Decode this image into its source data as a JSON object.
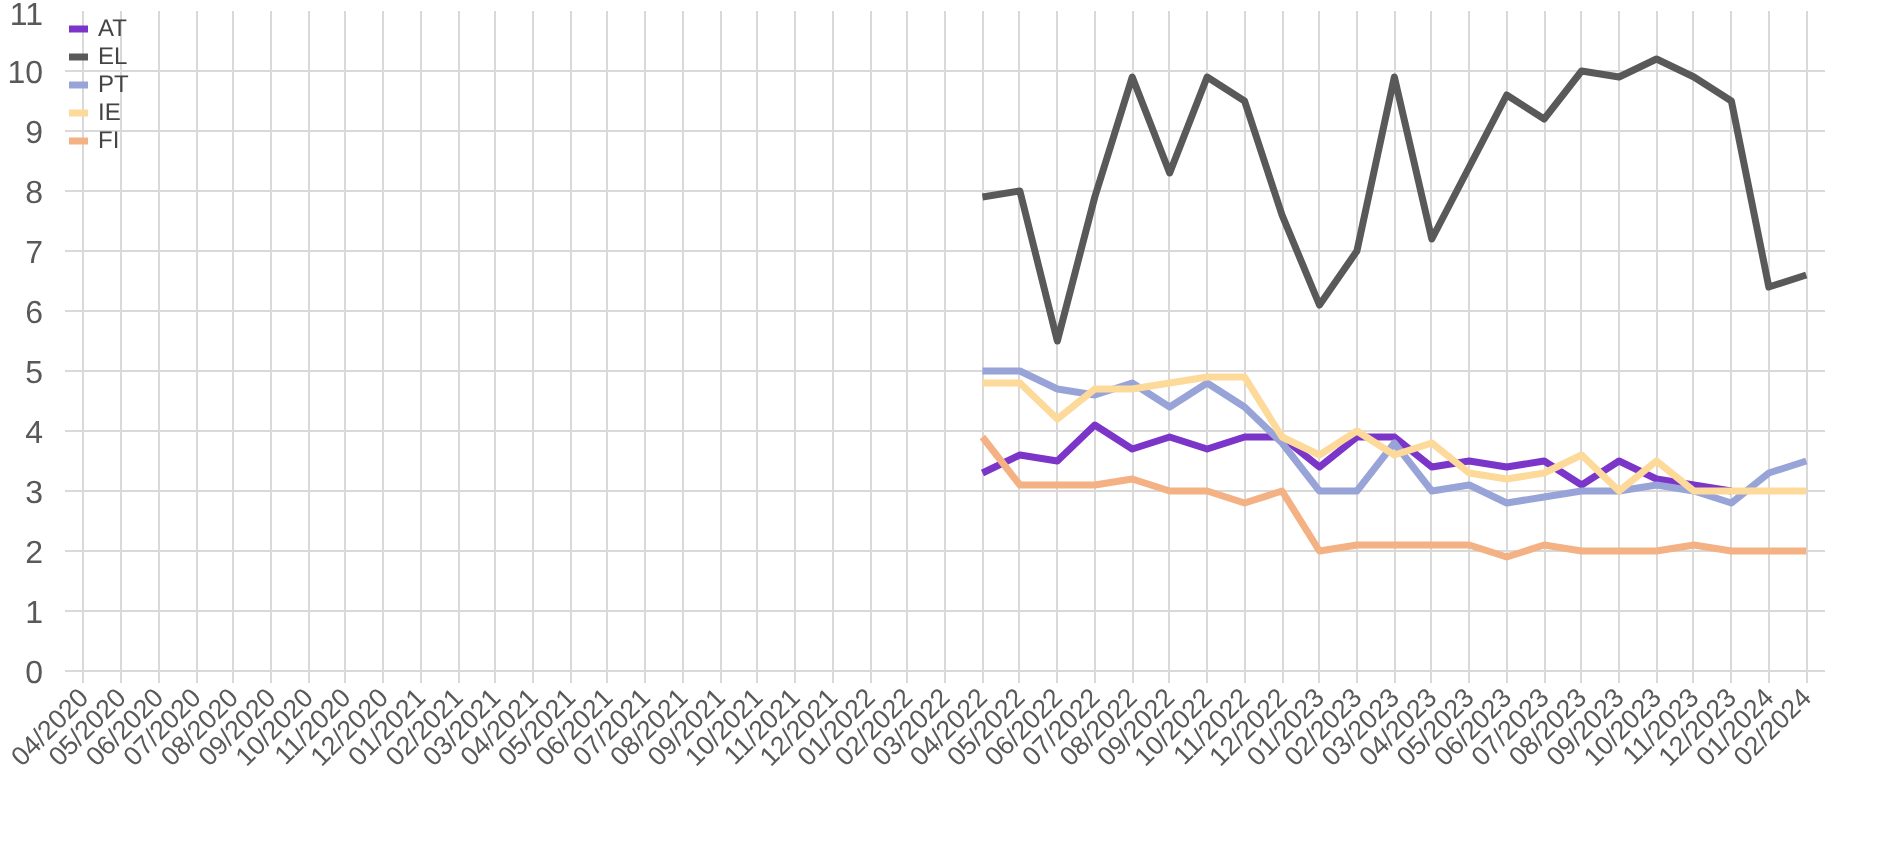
{
  "chart_data": {
    "type": "line",
    "categories": [
      "04/2020",
      "05/2020",
      "06/2020",
      "07/2020",
      "08/2020",
      "09/2020",
      "10/2020",
      "11/2020",
      "12/2020",
      "01/2021",
      "02/2021",
      "03/2021",
      "04/2021",
      "05/2021",
      "06/2021",
      "07/2021",
      "08/2021",
      "09/2021",
      "10/2021",
      "11/2021",
      "12/2021",
      "01/2022",
      "02/2022",
      "03/2022",
      "04/2022",
      "05/2022",
      "06/2022",
      "07/2022",
      "08/2022",
      "09/2022",
      "10/2022",
      "11/2022",
      "12/2022",
      "01/2023",
      "02/2023",
      "03/2023",
      "04/2023",
      "05/2023",
      "06/2023",
      "07/2023",
      "08/2023",
      "09/2023",
      "10/2023",
      "11/2023",
      "12/2023",
      "01/2024",
      "02/2024"
    ],
    "series": [
      {
        "name": "AT",
        "color": "#7b35c8",
        "values": [
          null,
          null,
          null,
          null,
          null,
          null,
          null,
          null,
          null,
          null,
          null,
          null,
          null,
          null,
          null,
          null,
          null,
          null,
          null,
          null,
          null,
          null,
          null,
          null,
          3.3,
          3.6,
          3.5,
          4.1,
          3.7,
          3.9,
          3.7,
          3.9,
          3.9,
          3.4,
          3.9,
          3.9,
          3.4,
          3.5,
          3.4,
          3.5,
          3.1,
          3.5,
          3.2,
          3.1,
          3.0,
          null,
          null
        ]
      },
      {
        "name": "EL",
        "color": "#595959",
        "values": [
          null,
          null,
          null,
          null,
          null,
          null,
          null,
          null,
          null,
          null,
          null,
          null,
          null,
          null,
          null,
          null,
          null,
          null,
          null,
          null,
          null,
          null,
          null,
          null,
          7.9,
          8.0,
          5.5,
          7.9,
          9.9,
          8.3,
          9.9,
          9.5,
          7.6,
          6.1,
          7.0,
          9.9,
          7.2,
          8.4,
          9.6,
          9.2,
          10.0,
          9.9,
          10.2,
          9.9,
          9.5,
          6.4,
          6.6
        ]
      },
      {
        "name": "PT",
        "color": "#98a4d8",
        "values": [
          null,
          null,
          null,
          null,
          null,
          null,
          null,
          null,
          null,
          null,
          null,
          null,
          null,
          null,
          null,
          null,
          null,
          null,
          null,
          null,
          null,
          null,
          null,
          null,
          5.0,
          5.0,
          4.7,
          4.6,
          4.8,
          4.4,
          4.8,
          4.4,
          3.8,
          3.0,
          3.0,
          3.8,
          3.0,
          3.1,
          2.8,
          2.9,
          3.0,
          3.0,
          3.1,
          3.0,
          2.8,
          3.3,
          3.5
        ]
      },
      {
        "name": "IE",
        "color": "#fdd99a",
        "values": [
          null,
          null,
          null,
          null,
          null,
          null,
          null,
          null,
          null,
          null,
          null,
          null,
          null,
          null,
          null,
          null,
          null,
          null,
          null,
          null,
          null,
          null,
          null,
          null,
          4.8,
          4.8,
          4.2,
          4.7,
          4.7,
          4.8,
          4.9,
          4.9,
          3.9,
          3.6,
          4.0,
          3.6,
          3.8,
          3.3,
          3.2,
          3.3,
          3.6,
          3.0,
          3.5,
          3.0,
          3.0,
          3.0,
          3.0
        ]
      },
      {
        "name": "FI",
        "color": "#f4b183",
        "values": [
          null,
          null,
          null,
          null,
          null,
          null,
          null,
          null,
          null,
          null,
          null,
          null,
          null,
          null,
          null,
          null,
          null,
          null,
          null,
          null,
          null,
          null,
          null,
          null,
          3.9,
          3.1,
          3.1,
          3.1,
          3.2,
          3.0,
          3.0,
          2.8,
          3.0,
          2.0,
          2.1,
          2.1,
          2.1,
          2.1,
          1.9,
          2.1,
          2.0,
          2.0,
          2.0,
          2.1,
          2.0,
          2.0,
          2.0
        ]
      }
    ],
    "ylim": [
      0,
      11
    ],
    "yticks": [
      0,
      1,
      2,
      3,
      4,
      5,
      6,
      7,
      8,
      9,
      10,
      11
    ],
    "grid": true,
    "legend": "top left",
    "marker": "none",
    "line_style": "solid"
  }
}
